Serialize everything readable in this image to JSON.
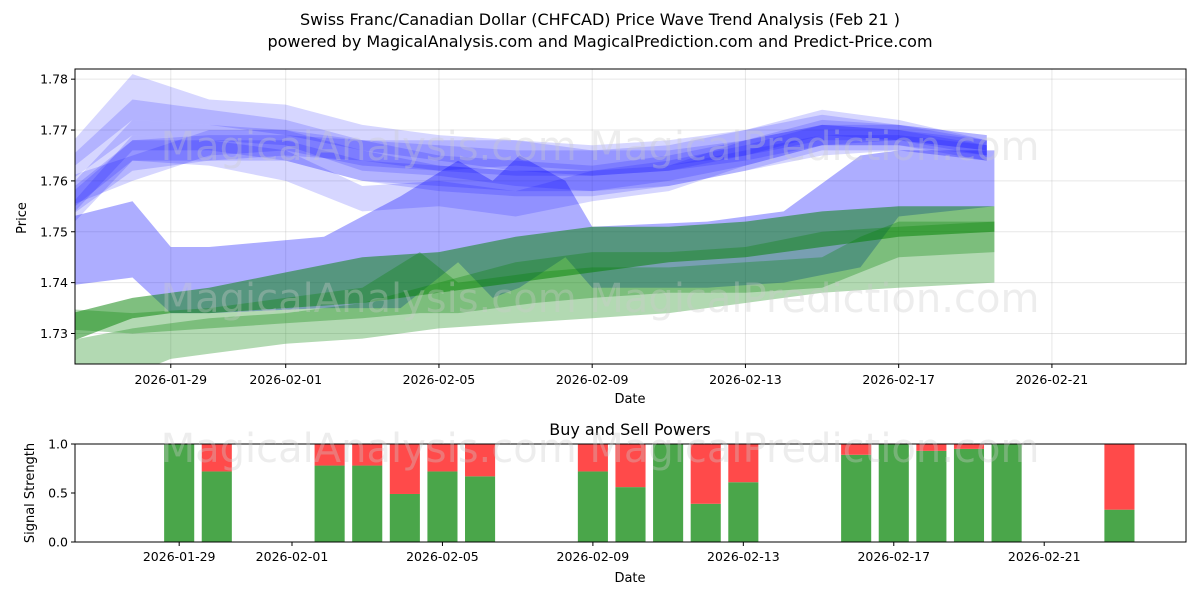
{
  "title_line1": "Swiss Franc/Canadian Dollar (CHFCAD) Price Wave Trend Analysis (Feb 21 )",
  "title_line2": "powered by MagicalAnalysis.com and MagicalPrediction.com and Predict-Price.com",
  "watermark_text": "MagicalAnalysis.com   MagicalPrediction.com",
  "colors": {
    "blue_band": "#0000ff",
    "green_band": "#008000",
    "buy": "#4aa64a",
    "sell": "#ff4a4a"
  },
  "chart_data": [
    {
      "type": "area",
      "title": "",
      "xlabel": "Date",
      "ylabel": "Price",
      "xlim": [
        "2026-01-26T12",
        "2026-02-24T12"
      ],
      "ylim": [
        1.724,
        1.782
      ],
      "yticks": [
        1.73,
        1.74,
        1.75,
        1.76,
        1.77,
        1.78
      ],
      "ytick_labels": [
        "1.73",
        "1.74",
        "1.75",
        "1.76",
        "1.77",
        "1.78"
      ],
      "xticks": [
        "2026-01-29",
        "2026-02-01",
        "2026-02-05",
        "2026-02-09",
        "2026-02-13",
        "2026-02-17",
        "2026-02-21"
      ],
      "grid": true,
      "blue_waves": [
        {
          "x": [
            -2,
            0,
            2,
            4,
            6,
            8,
            10,
            12,
            14,
            16,
            18,
            20,
            22.3
          ],
          "lower": [
            1.751,
            1.762,
            1.764,
            1.765,
            1.764,
            1.762,
            1.761,
            1.761,
            1.762,
            1.764,
            1.767,
            1.768,
            1.766
          ],
          "upper": [
            1.756,
            1.768,
            1.769,
            1.769,
            1.768,
            1.767,
            1.766,
            1.766,
            1.766,
            1.768,
            1.771,
            1.771,
            1.769
          ],
          "alpha": 0.16
        },
        {
          "x": [
            -2,
            0,
            2,
            4,
            6,
            8,
            10,
            12,
            14,
            16,
            18,
            20,
            22.3
          ],
          "lower": [
            1.758,
            1.769,
            1.768,
            1.767,
            1.762,
            1.761,
            1.759,
            1.758,
            1.76,
            1.763,
            1.767,
            1.767,
            1.765
          ],
          "upper": [
            1.762,
            1.776,
            1.774,
            1.772,
            1.768,
            1.765,
            1.764,
            1.763,
            1.765,
            1.768,
            1.772,
            1.771,
            1.768
          ],
          "alpha": 0.16
        },
        {
          "x": [
            -2,
            0,
            2,
            4,
            6,
            8,
            10,
            12,
            14,
            16,
            18,
            20,
            22.3
          ],
          "lower": [
            1.75,
            1.766,
            1.766,
            1.764,
            1.76,
            1.758,
            1.757,
            1.757,
            1.759,
            1.762,
            1.766,
            1.766,
            1.764
          ],
          "upper": [
            1.756,
            1.772,
            1.771,
            1.77,
            1.766,
            1.763,
            1.762,
            1.762,
            1.764,
            1.767,
            1.771,
            1.77,
            1.768
          ],
          "alpha": 0.16
        },
        {
          "x": [
            -2,
            0,
            2,
            4,
            6,
            8,
            10,
            12,
            14,
            16,
            18,
            20,
            22.3
          ],
          "lower": [
            1.754,
            1.76,
            1.765,
            1.766,
            1.763,
            1.762,
            1.763,
            1.762,
            1.763,
            1.765,
            1.768,
            1.768,
            1.766
          ],
          "upper": [
            1.76,
            1.765,
            1.77,
            1.77,
            1.768,
            1.768,
            1.768,
            1.767,
            1.768,
            1.77,
            1.773,
            1.771,
            1.769
          ],
          "alpha": 0.16
        },
        {
          "x": [
            -2,
            0,
            2,
            4,
            6,
            8,
            10,
            12,
            14,
            16,
            18,
            20,
            22.3
          ],
          "lower": [
            1.76,
            1.772,
            1.771,
            1.769,
            1.766,
            1.764,
            1.762,
            1.761,
            1.762,
            1.765,
            1.769,
            1.768,
            1.765
          ],
          "upper": [
            1.764,
            1.781,
            1.776,
            1.775,
            1.771,
            1.769,
            1.768,
            1.766,
            1.767,
            1.77,
            1.774,
            1.772,
            1.768
          ],
          "alpha": 0.16
        },
        {
          "x": [
            -2,
            0,
            2,
            4,
            6,
            8,
            10,
            12,
            14,
            16,
            18,
            20,
            22.3
          ],
          "lower": [
            1.748,
            1.764,
            1.763,
            1.76,
            1.754,
            1.755,
            1.753,
            1.756,
            1.758,
            1.763,
            1.767,
            1.767,
            1.764
          ],
          "upper": [
            1.752,
            1.769,
            1.768,
            1.766,
            1.759,
            1.76,
            1.758,
            1.762,
            1.763,
            1.768,
            1.771,
            1.77,
            1.767
          ],
          "alpha": 0.16
        },
        {
          "x": [
            -2,
            0,
            2,
            4,
            6,
            8,
            10,
            12,
            14,
            16,
            18,
            20,
            22.3
          ],
          "lower": [
            1.752,
            1.764,
            1.764,
            1.764,
            1.76,
            1.759,
            1.758,
            1.758,
            1.759,
            1.762,
            1.765,
            1.766,
            1.764
          ],
          "upper": [
            1.755,
            1.768,
            1.768,
            1.768,
            1.764,
            1.763,
            1.762,
            1.762,
            1.763,
            1.766,
            1.769,
            1.769,
            1.767
          ],
          "alpha": 0.16
        },
        {
          "x": [
            -2.1,
            0,
            1,
            2,
            5,
            7,
            8.5,
            9.4,
            10.1,
            11.3,
            12,
            15,
            17,
            19,
            20,
            22.5
          ],
          "lower": [
            1.739,
            1.741,
            1.734,
            1.734,
            1.735,
            1.735,
            1.744,
            1.737,
            1.739,
            1.745,
            1.739,
            1.739,
            1.74,
            1.743,
            1.753,
            1.755
          ],
          "upper": [
            1.752,
            1.756,
            1.747,
            1.747,
            1.749,
            1.757,
            1.764,
            1.76,
            1.765,
            1.76,
            1.751,
            1.752,
            1.754,
            1.765,
            1.766,
            1.766
          ],
          "alpha": 0.32
        }
      ],
      "green_waves": [
        {
          "x": [
            -2.1,
            0,
            1,
            2,
            4,
            6,
            8,
            10,
            12,
            14,
            16,
            18,
            20,
            22.5
          ],
          "lower": [
            1.727,
            1.733,
            1.734,
            1.734,
            1.735,
            1.736,
            1.738,
            1.74,
            1.742,
            1.744,
            1.745,
            1.747,
            1.749,
            1.75
          ],
          "upper": [
            1.733,
            1.737,
            1.738,
            1.739,
            1.742,
            1.745,
            1.746,
            1.749,
            1.751,
            1.751,
            1.752,
            1.754,
            1.755,
            1.755
          ],
          "alpha": 0.5
        },
        {
          "x": [
            -2.1,
            0,
            1,
            2,
            4,
            6,
            8,
            10,
            12,
            14,
            16,
            18,
            20,
            22.5
          ],
          "lower": [
            1.722,
            1.722,
            1.725,
            1.726,
            1.728,
            1.729,
            1.731,
            1.732,
            1.733,
            1.734,
            1.736,
            1.738,
            1.739,
            1.74
          ],
          "upper": [
            1.728,
            1.731,
            1.732,
            1.733,
            1.734,
            1.736,
            1.74,
            1.744,
            1.746,
            1.746,
            1.747,
            1.75,
            1.751,
            1.752
          ],
          "alpha": 0.3
        },
        {
          "x": [
            -2.1,
            0,
            2,
            4,
            6,
            7.5,
            8.5,
            9.5,
            10.5,
            12,
            14,
            16,
            18,
            19,
            20,
            22.5
          ],
          "lower": [
            1.731,
            1.73,
            1.731,
            1.732,
            1.733,
            1.734,
            1.734,
            1.735,
            1.736,
            1.737,
            1.738,
            1.738,
            1.739,
            1.742,
            1.745,
            1.746
          ],
          "upper": [
            1.735,
            1.734,
            1.735,
            1.737,
            1.739,
            1.746,
            1.74,
            1.741,
            1.742,
            1.743,
            1.743,
            1.744,
            1.745,
            1.749,
            1.752,
            1.752
          ],
          "alpha": 0.3
        }
      ]
    },
    {
      "type": "bar",
      "title": "Buy and Sell Powers",
      "xlabel": "Date",
      "ylabel": "Signal Strength",
      "ylim": [
        0,
        1
      ],
      "yticks": [
        0.0,
        0.5,
        1.0
      ],
      "ytick_labels": [
        "0.0",
        "0.5",
        "1.0"
      ],
      "xticks": [
        "2026-01-29",
        "2026-02-01",
        "2026-02-05",
        "2026-02-09",
        "2026-02-13",
        "2026-02-17",
        "2026-02-21"
      ],
      "categories": [
        "2026-01-29",
        "2026-01-30",
        "2026-02-02",
        "2026-02-03",
        "2026-02-04",
        "2026-02-05",
        "2026-02-06",
        "2026-02-09",
        "2026-02-10",
        "2026-02-11",
        "2026-02-12",
        "2026-02-13",
        "2026-02-16",
        "2026-02-17",
        "2026-02-18",
        "2026-02-19",
        "2026-02-20",
        "2026-02-23"
      ],
      "series": [
        {
          "name": "Buy",
          "values": [
            1.0,
            0.72,
            0.78,
            0.78,
            0.49,
            0.72,
            0.67,
            0.72,
            0.56,
            1.0,
            0.39,
            0.61,
            0.89,
            1.0,
            0.93,
            0.95,
            1.0,
            0.33
          ]
        },
        {
          "name": "Sell",
          "values": [
            0.0,
            0.28,
            0.22,
            0.22,
            0.51,
            0.28,
            0.33,
            0.28,
            0.44,
            0.0,
            0.61,
            0.39,
            0.11,
            0.0,
            0.07,
            0.05,
            0.0,
            0.67
          ]
        }
      ]
    }
  ]
}
